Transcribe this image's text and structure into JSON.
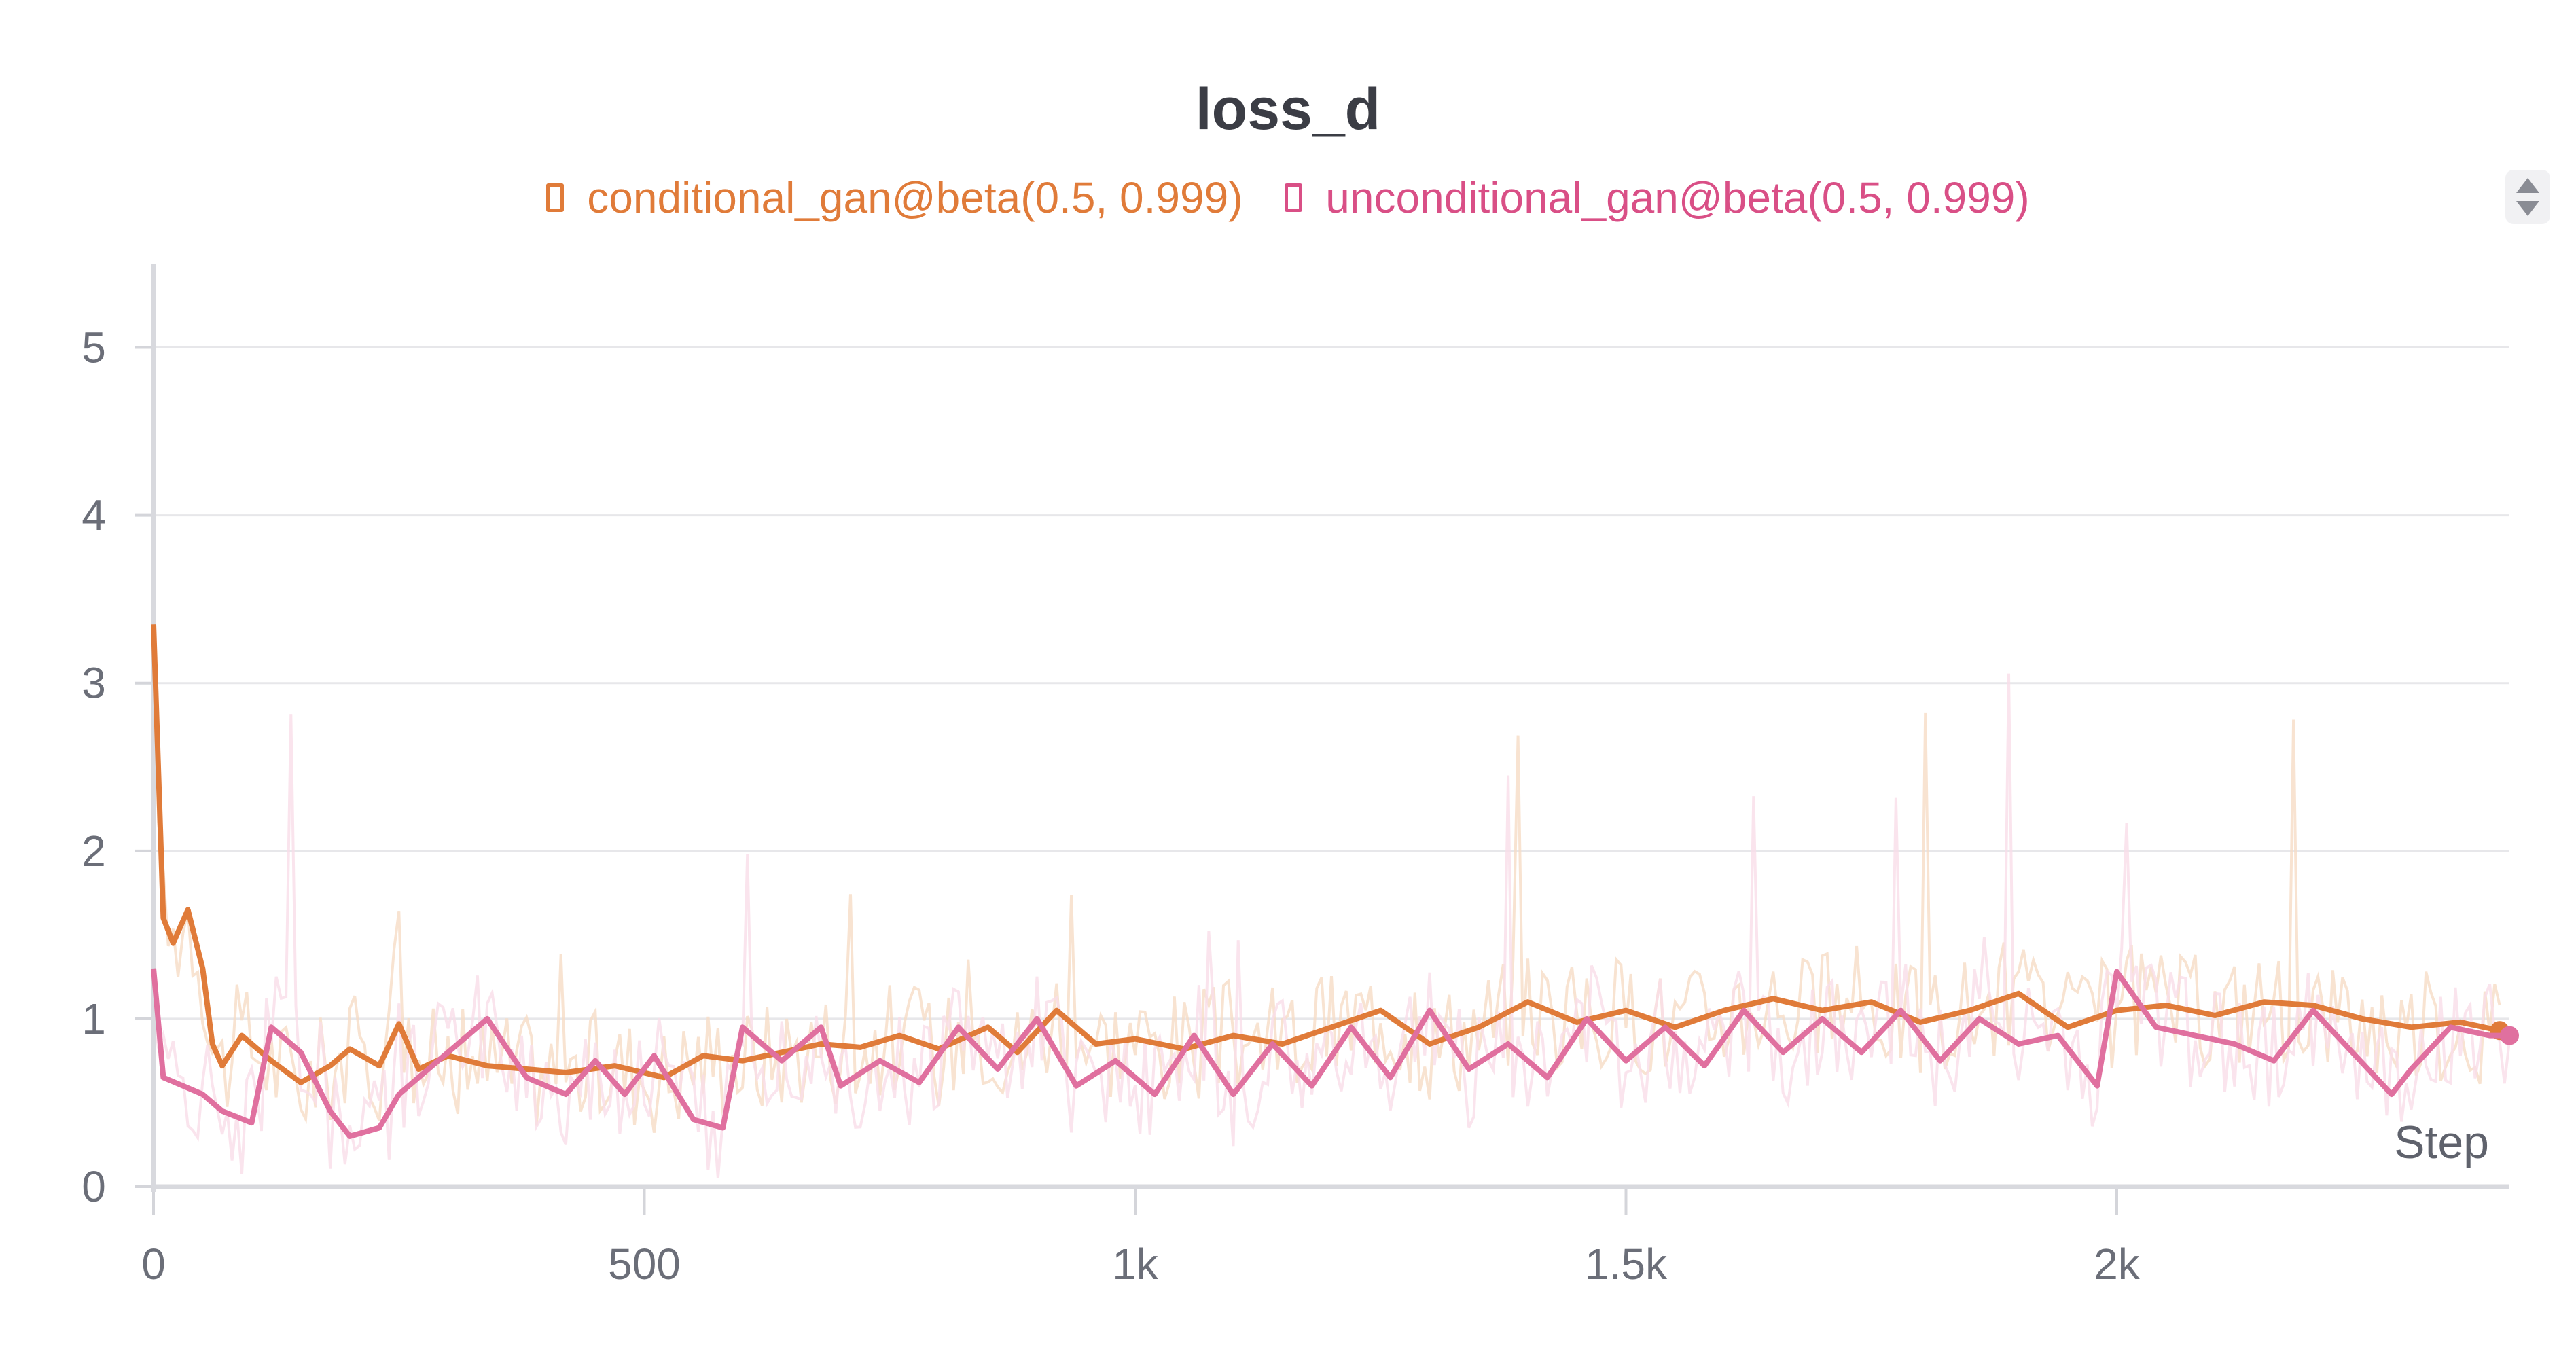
{
  "chart_data": {
    "type": "line",
    "title": "loss_d",
    "xlabel": "Step",
    "ylabel": "",
    "xlim": [
      0,
      2400
    ],
    "ylim": [
      0,
      5.5
    ],
    "x_ticks": [
      0,
      500,
      1000,
      1500,
      2000
    ],
    "x_tick_labels": [
      "0",
      "500",
      "1k",
      "1.5k",
      "2k"
    ],
    "y_ticks": [
      0,
      1,
      2,
      3,
      4,
      5
    ],
    "y_tick_labels": [
      "0",
      "1",
      "2",
      "3",
      "4",
      "5"
    ],
    "grid": true,
    "legend_position": "top",
    "series": [
      {
        "name": "conditional_gan@beta(0.5, 0.999)",
        "color": "#e07b39",
        "raw_color": "#f6dcc6",
        "x": [
          0,
          10,
          20,
          35,
          50,
          60,
          70,
          90,
          120,
          150,
          180,
          200,
          230,
          250,
          270,
          300,
          340,
          380,
          420,
          470,
          520,
          560,
          600,
          640,
          680,
          720,
          760,
          800,
          850,
          880,
          920,
          960,
          1000,
          1050,
          1100,
          1150,
          1200,
          1250,
          1300,
          1350,
          1400,
          1450,
          1500,
          1550,
          1600,
          1650,
          1700,
          1750,
          1800,
          1850,
          1900,
          1950,
          2000,
          2050,
          2100,
          2150,
          2200,
          2250,
          2300,
          2350,
          2390
        ],
        "values": [
          3.35,
          1.6,
          1.45,
          1.65,
          1.3,
          0.85,
          0.72,
          0.9,
          0.75,
          0.62,
          0.72,
          0.82,
          0.72,
          0.97,
          0.7,
          0.78,
          0.72,
          0.7,
          0.68,
          0.72,
          0.65,
          0.78,
          0.75,
          0.8,
          0.85,
          0.83,
          0.9,
          0.82,
          0.95,
          0.8,
          1.05,
          0.85,
          0.88,
          0.82,
          0.9,
          0.85,
          0.95,
          1.05,
          0.85,
          0.95,
          1.1,
          0.98,
          1.05,
          0.95,
          1.05,
          1.12,
          1.05,
          1.1,
          0.98,
          1.05,
          1.15,
          0.95,
          1.05,
          1.08,
          1.02,
          1.1,
          1.08,
          1.0,
          0.95,
          0.98,
          0.93
        ]
      },
      {
        "name": "unconditional_gan@beta(0.5, 0.999)",
        "color": "#e0709f",
        "raw_color": "#f9dde8",
        "x": [
          0,
          10,
          30,
          50,
          70,
          100,
          120,
          150,
          180,
          200,
          230,
          250,
          280,
          300,
          340,
          380,
          420,
          450,
          480,
          510,
          550,
          580,
          600,
          640,
          680,
          700,
          740,
          780,
          820,
          860,
          900,
          940,
          980,
          1020,
          1060,
          1100,
          1140,
          1180,
          1220,
          1260,
          1300,
          1340,
          1380,
          1420,
          1460,
          1500,
          1540,
          1580,
          1620,
          1660,
          1700,
          1740,
          1780,
          1820,
          1860,
          1900,
          1940,
          1980,
          2000,
          2040,
          2080,
          2120,
          2160,
          2200,
          2240,
          2280,
          2300,
          2340,
          2380,
          2400
        ],
        "values": [
          1.3,
          0.65,
          0.6,
          0.55,
          0.45,
          0.38,
          0.95,
          0.8,
          0.45,
          0.3,
          0.35,
          0.55,
          0.7,
          0.8,
          1.0,
          0.65,
          0.55,
          0.75,
          0.55,
          0.78,
          0.4,
          0.35,
          0.95,
          0.75,
          0.95,
          0.6,
          0.75,
          0.62,
          0.95,
          0.7,
          1.0,
          0.6,
          0.75,
          0.55,
          0.9,
          0.55,
          0.85,
          0.6,
          0.95,
          0.65,
          1.05,
          0.7,
          0.85,
          0.65,
          1.0,
          0.75,
          0.95,
          0.72,
          1.05,
          0.8,
          1.0,
          0.8,
          1.05,
          0.75,
          1.0,
          0.85,
          0.9,
          0.6,
          1.28,
          0.95,
          0.9,
          0.85,
          0.75,
          1.05,
          0.8,
          0.55,
          0.7,
          0.95,
          0.9,
          0.9
        ]
      }
    ]
  }
}
